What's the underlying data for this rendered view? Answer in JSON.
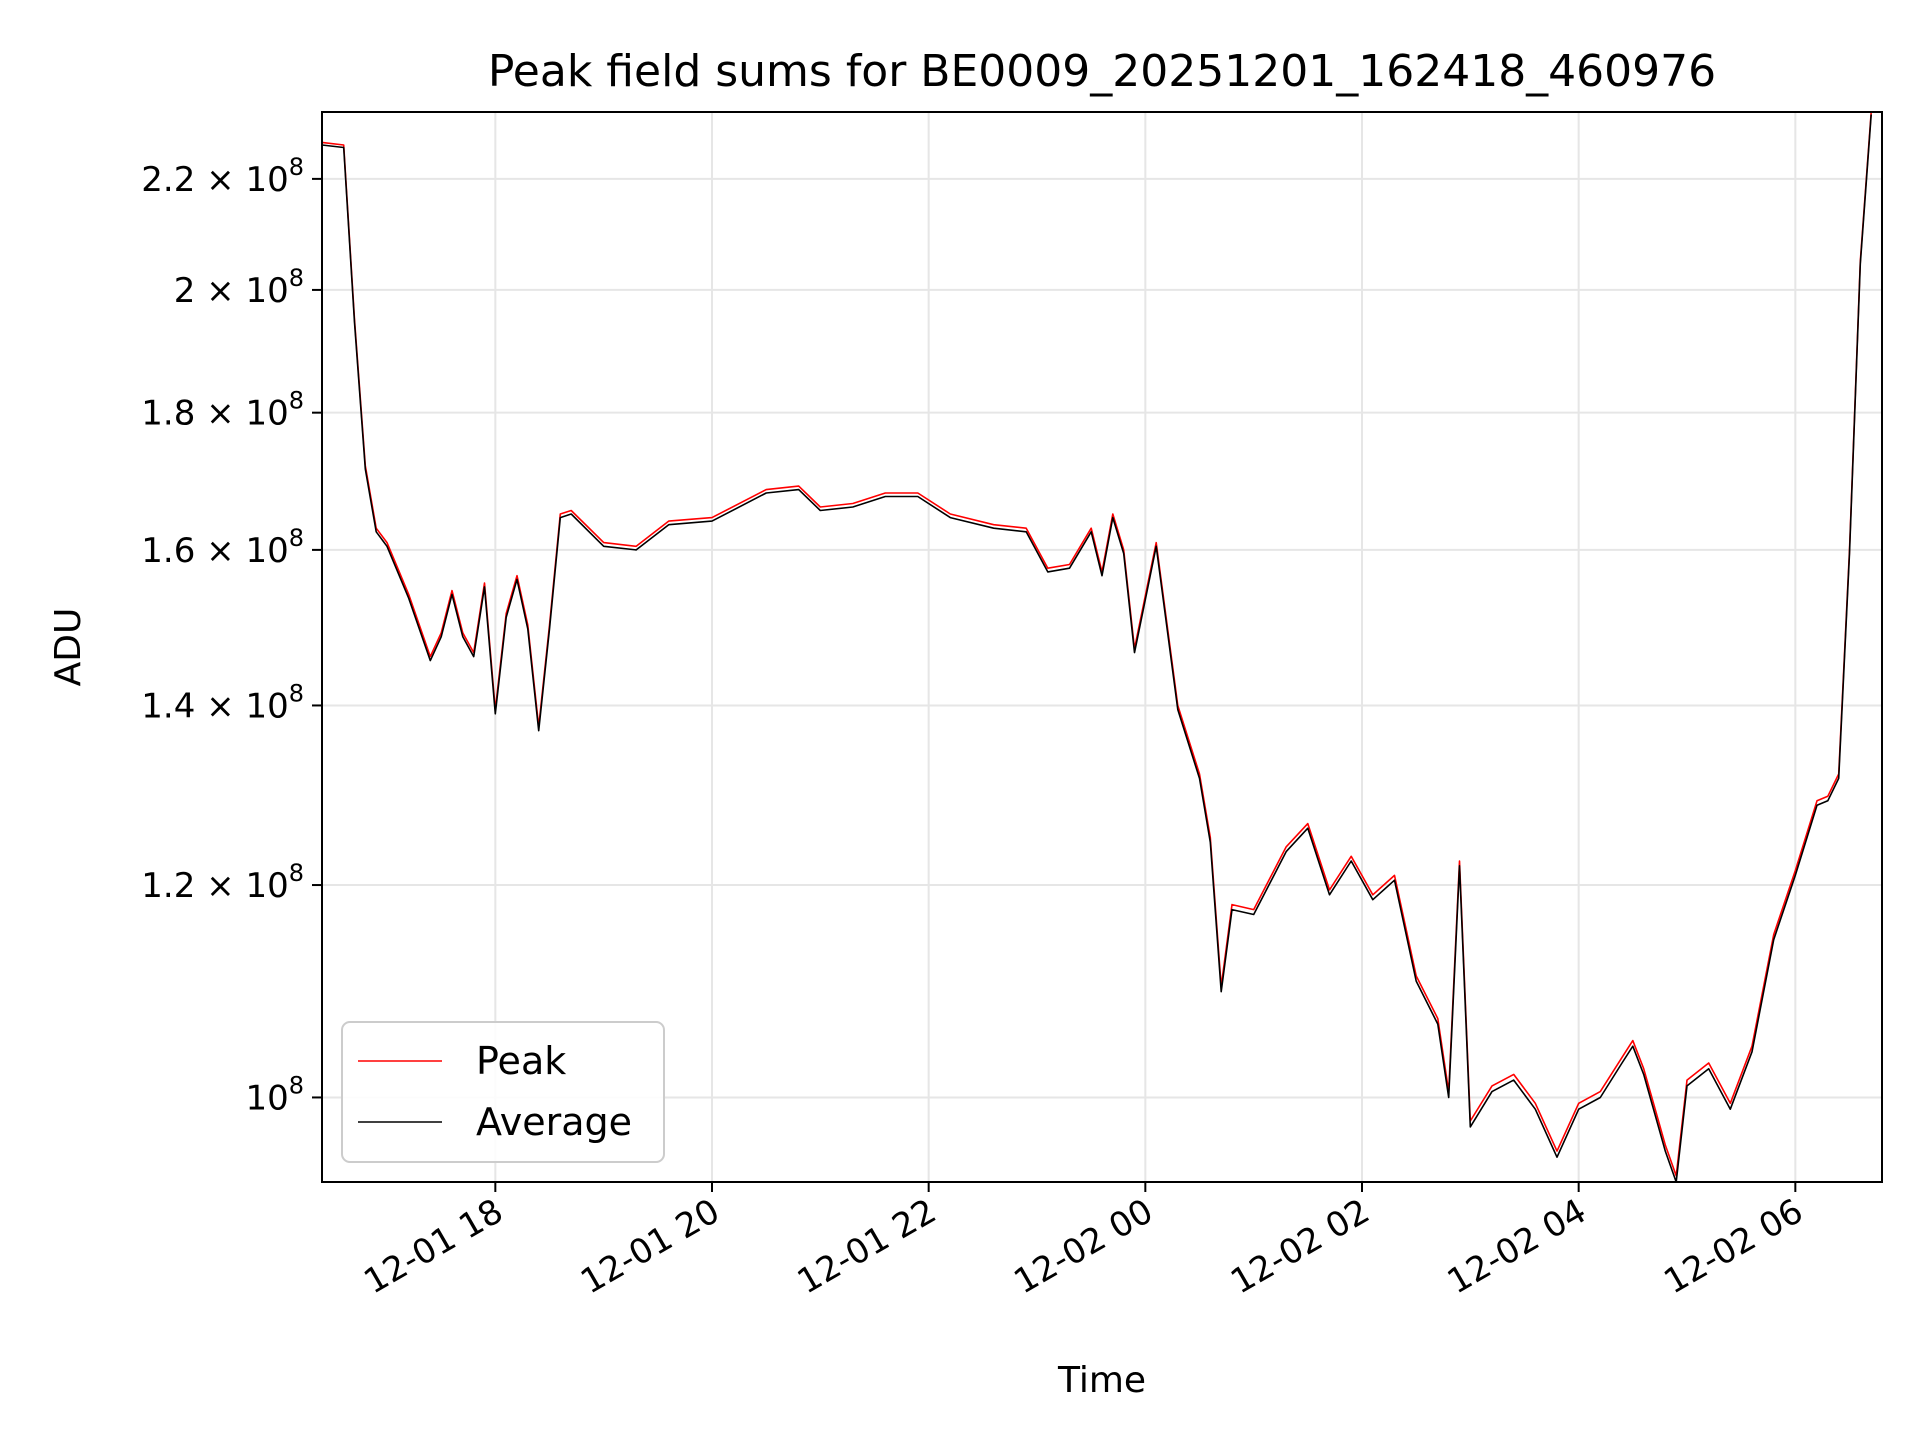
{
  "chart_data": {
    "type": "line",
    "title": "Peak field sums for BE0009_20251201_162418_460976",
    "xlabel": "Time",
    "ylabel": "ADU",
    "yscale": "log",
    "x_range": [
      "2025-12-01 16:24",
      "2025-12-02 06:48"
    ],
    "ylim": [
      93000000,
      233000000
    ],
    "grid": true,
    "legend_position": "lower-left",
    "x_ticks": [
      {
        "label": "12-01 18",
        "value": "2025-12-01 18:00"
      },
      {
        "label": "12-01 20",
        "value": "2025-12-01 20:00"
      },
      {
        "label": "12-01 22",
        "value": "2025-12-01 22:00"
      },
      {
        "label": "12-02 00",
        "value": "2025-12-02 00:00"
      },
      {
        "label": "12-02 02",
        "value": "2025-12-02 02:00"
      },
      {
        "label": "12-02 04",
        "value": "2025-12-02 04:00"
      },
      {
        "label": "12-02 06",
        "value": "2025-12-02 06:00"
      }
    ],
    "y_ticks": [
      {
        "value": 100000000,
        "base": "10",
        "exp": "8",
        "mant": ""
      },
      {
        "value": 120000000,
        "base": "1.2 × 10",
        "exp": "8",
        "mant": "1.2"
      },
      {
        "value": 140000000,
        "base": "1.4 × 10",
        "exp": "8",
        "mant": "1.4"
      },
      {
        "value": 160000000,
        "base": "1.6 × 10",
        "exp": "8",
        "mant": "1.6"
      },
      {
        "value": 180000000,
        "base": "1.8 × 10",
        "exp": "8",
        "mant": "1.8"
      },
      {
        "value": 200000000,
        "base": "2 × 10",
        "exp": "8",
        "mant": "2"
      },
      {
        "value": 220000000,
        "base": "2.2 × 10",
        "exp": "8",
        "mant": "2.2"
      }
    ],
    "series": [
      {
        "name": "Peak",
        "color": "#ff0000",
        "x": [
          "2025-12-01 16:24",
          "2025-12-01 16:36",
          "2025-12-01 16:42",
          "2025-12-01 16:48",
          "2025-12-01 16:54",
          "2025-12-01 17:00",
          "2025-12-01 17:12",
          "2025-12-01 17:24",
          "2025-12-01 17:30",
          "2025-12-01 17:36",
          "2025-12-01 17:42",
          "2025-12-01 17:48",
          "2025-12-01 17:54",
          "2025-12-01 18:00",
          "2025-12-01 18:06",
          "2025-12-01 18:12",
          "2025-12-01 18:18",
          "2025-12-01 18:24",
          "2025-12-01 18:30",
          "2025-12-01 18:36",
          "2025-12-01 18:42",
          "2025-12-01 19:00",
          "2025-12-01 19:18",
          "2025-12-01 19:36",
          "2025-12-01 20:00",
          "2025-12-01 20:30",
          "2025-12-01 20:48",
          "2025-12-01 21:00",
          "2025-12-01 21:18",
          "2025-12-01 21:36",
          "2025-12-01 21:54",
          "2025-12-01 22:12",
          "2025-12-01 22:36",
          "2025-12-01 22:54",
          "2025-12-01 23:06",
          "2025-12-01 23:18",
          "2025-12-01 23:30",
          "2025-12-01 23:36",
          "2025-12-01 23:42",
          "2025-12-01 23:48",
          "2025-12-01 23:54",
          "2025-12-02 00:06",
          "2025-12-02 00:18",
          "2025-12-02 00:30",
          "2025-12-02 00:36",
          "2025-12-02 00:42",
          "2025-12-02 00:48",
          "2025-12-02 01:00",
          "2025-12-02 01:18",
          "2025-12-02 01:30",
          "2025-12-02 01:42",
          "2025-12-02 01:54",
          "2025-12-02 02:06",
          "2025-12-02 02:18",
          "2025-12-02 02:30",
          "2025-12-02 02:42",
          "2025-12-02 02:48",
          "2025-12-02 02:54",
          "2025-12-02 03:00",
          "2025-12-02 03:12",
          "2025-12-02 03:24",
          "2025-12-02 03:36",
          "2025-12-02 03:48",
          "2025-12-02 04:00",
          "2025-12-02 04:12",
          "2025-12-02 04:24",
          "2025-12-02 04:30",
          "2025-12-02 04:36",
          "2025-12-02 04:48",
          "2025-12-02 04:54",
          "2025-12-02 05:00",
          "2025-12-02 05:12",
          "2025-12-02 05:24",
          "2025-12-02 05:36",
          "2025-12-02 05:48",
          "2025-12-02 06:00",
          "2025-12-02 06:12",
          "2025-12-02 06:18",
          "2025-12-02 06:24",
          "2025-12-02 06:30",
          "2025-12-02 06:36",
          "2025-12-02 06:42"
        ],
        "y": [
          227000000,
          226500000,
          195000000,
          172000000,
          163000000,
          161000000,
          154000000,
          146000000,
          149000000,
          154500000,
          149000000,
          146500000,
          155500000,
          139500000,
          151500000,
          156500000,
          150000000,
          137500000,
          150000000,
          165000000,
          165500000,
          161000000,
          160500000,
          164000000,
          164500000,
          168500000,
          169000000,
          166000000,
          166500000,
          168000000,
          168000000,
          165000000,
          163500000,
          163000000,
          157500000,
          158000000,
          163000000,
          157000000,
          165000000,
          160000000,
          147000000,
          161000000,
          140000000,
          132000000,
          125000000,
          110000000,
          118000000,
          117500000,
          124000000,
          126500000,
          119500000,
          123000000,
          119000000,
          121000000,
          111000000,
          107000000,
          100500000,
          122500000,
          98000000,
          101000000,
          102000000,
          99500000,
          95500000,
          99500000,
          100500000,
          103500000,
          105000000,
          102500000,
          96000000,
          93500000,
          101500000,
          103000000,
          99500000,
          104500000,
          115000000,
          121500000,
          129000000,
          129500000,
          132000000,
          160000000,
          205000000,
          233000000
        ]
      },
      {
        "name": "Average",
        "color": "#000000",
        "x": [
          "2025-12-01 16:24",
          "2025-12-01 16:36",
          "2025-12-01 16:42",
          "2025-12-01 16:48",
          "2025-12-01 16:54",
          "2025-12-01 17:00",
          "2025-12-01 17:12",
          "2025-12-01 17:24",
          "2025-12-01 17:30",
          "2025-12-01 17:36",
          "2025-12-01 17:42",
          "2025-12-01 17:48",
          "2025-12-01 17:54",
          "2025-12-01 18:00",
          "2025-12-01 18:06",
          "2025-12-01 18:12",
          "2025-12-01 18:18",
          "2025-12-01 18:24",
          "2025-12-01 18:30",
          "2025-12-01 18:36",
          "2025-12-01 18:42",
          "2025-12-01 19:00",
          "2025-12-01 19:18",
          "2025-12-01 19:36",
          "2025-12-01 20:00",
          "2025-12-01 20:30",
          "2025-12-01 20:48",
          "2025-12-01 21:00",
          "2025-12-01 21:18",
          "2025-12-01 21:36",
          "2025-12-01 21:54",
          "2025-12-01 22:12",
          "2025-12-01 22:36",
          "2025-12-01 22:54",
          "2025-12-01 23:06",
          "2025-12-01 23:18",
          "2025-12-01 23:30",
          "2025-12-01 23:36",
          "2025-12-01 23:42",
          "2025-12-01 23:48",
          "2025-12-01 23:54",
          "2025-12-02 00:06",
          "2025-12-02 00:18",
          "2025-12-02 00:30",
          "2025-12-02 00:36",
          "2025-12-02 00:42",
          "2025-12-02 00:48",
          "2025-12-02 01:00",
          "2025-12-02 01:18",
          "2025-12-02 01:30",
          "2025-12-02 01:42",
          "2025-12-02 01:54",
          "2025-12-02 02:06",
          "2025-12-02 02:18",
          "2025-12-02 02:30",
          "2025-12-02 02:42",
          "2025-12-02 02:48",
          "2025-12-02 02:54",
          "2025-12-02 03:00",
          "2025-12-02 03:12",
          "2025-12-02 03:24",
          "2025-12-02 03:36",
          "2025-12-02 03:48",
          "2025-12-02 04:00",
          "2025-12-02 04:12",
          "2025-12-02 04:24",
          "2025-12-02 04:30",
          "2025-12-02 04:36",
          "2025-12-02 04:48",
          "2025-12-02 04:54",
          "2025-12-02 05:00",
          "2025-12-02 05:12",
          "2025-12-02 05:24",
          "2025-12-02 05:36",
          "2025-12-02 05:48",
          "2025-12-02 06:00",
          "2025-12-02 06:12",
          "2025-12-02 06:18",
          "2025-12-02 06:24",
          "2025-12-02 06:30",
          "2025-12-02 06:36",
          "2025-12-02 06:42"
        ],
        "y": [
          226500000,
          226000000,
          194500000,
          171500000,
          162500000,
          160500000,
          153500000,
          145500000,
          148500000,
          154000000,
          148500000,
          146000000,
          155000000,
          139000000,
          151000000,
          156000000,
          149500000,
          137000000,
          149500000,
          164500000,
          165000000,
          160500000,
          160000000,
          163500000,
          164000000,
          168000000,
          168500000,
          165500000,
          166000000,
          167500000,
          167500000,
          164500000,
          163000000,
          162500000,
          157000000,
          157500000,
          162500000,
          156500000,
          164500000,
          159500000,
          146500000,
          160500000,
          139500000,
          131500000,
          124500000,
          109500000,
          117500000,
          117000000,
          123500000,
          126000000,
          119000000,
          122500000,
          118500000,
          120500000,
          110500000,
          106500000,
          100000000,
          122000000,
          97500000,
          100500000,
          101500000,
          99000000,
          95000000,
          99000000,
          100000000,
          103000000,
          104500000,
          102000000,
          95500000,
          93000000,
          101000000,
          102500000,
          99000000,
          104000000,
          114500000,
          121000000,
          128500000,
          129000000,
          131500000,
          159500000,
          204500000,
          232500000
        ]
      }
    ]
  }
}
